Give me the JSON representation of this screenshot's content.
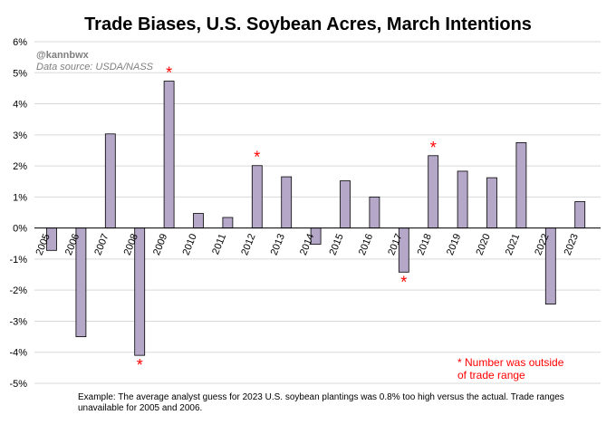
{
  "chart_data": {
    "type": "bar",
    "title": "Trade Biases, U.S. Soybean Acres, March Intentions",
    "watermark": "@kannbwx",
    "source": "Data source: USDA/NASS",
    "categories": [
      "2005",
      "2006",
      "2007",
      "2008",
      "2009",
      "2010",
      "2011",
      "2012",
      "2013",
      "2014",
      "2015",
      "2016",
      "2017",
      "2018",
      "2019",
      "2020",
      "2021",
      "2022",
      "2023"
    ],
    "values": [
      -0.72,
      -3.5,
      3.03,
      -4.1,
      4.73,
      0.47,
      0.34,
      2.01,
      1.65,
      -0.52,
      1.52,
      1.0,
      -1.42,
      2.33,
      1.83,
      1.62,
      2.75,
      -2.45,
      0.85
    ],
    "outside_trade_range": [
      false,
      false,
      false,
      true,
      true,
      false,
      false,
      true,
      false,
      false,
      false,
      false,
      true,
      true,
      false,
      false,
      false,
      false,
      false
    ],
    "star_marker": "*",
    "ylim": [
      -5,
      6
    ],
    "yticks": [
      6,
      5,
      4,
      3,
      2,
      1,
      0,
      -1,
      -2,
      -3,
      -4,
      -5
    ],
    "ytick_labels": [
      "6%",
      "5%",
      "4%",
      "3%",
      "2%",
      "1%",
      "0%",
      "-1%",
      "-2%",
      "-3%",
      "-4%",
      "-5%"
    ],
    "grid": true,
    "bar_color": "#b4a7c8",
    "bar_edge_color": "#000000",
    "star_color": "#ff0000",
    "annotation": [
      "* Number was outside",
      "of trade range"
    ],
    "footnote": "Example: The average analyst guess for 2023 U.S. soybean plantings was 0.8% too high versus the actual. Trade ranges unavailable for 2005 and 2006."
  }
}
